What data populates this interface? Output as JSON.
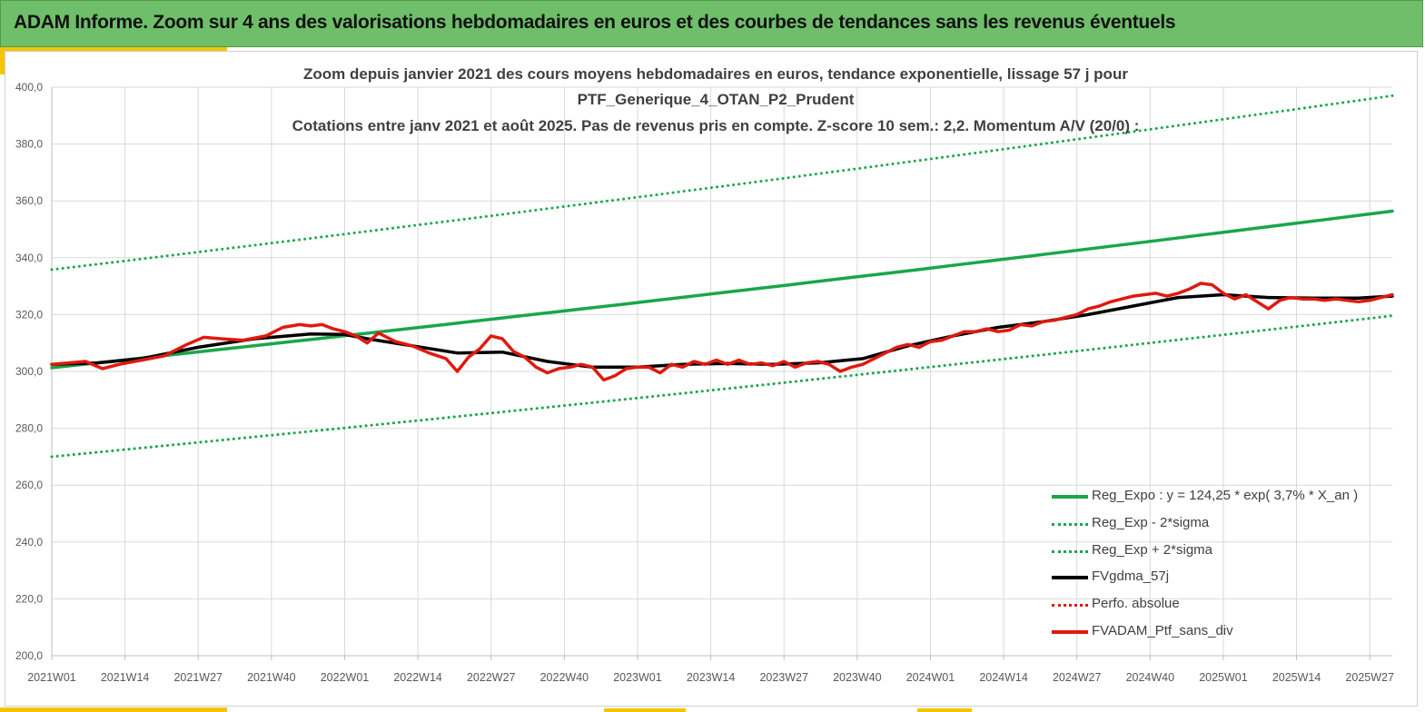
{
  "header": {
    "title": "ADAM Informe. Zoom sur 4 ans des valorisations hebdomadaires en euros et des courbes de tendances sans les revenus éventuels"
  },
  "chart_data": {
    "type": "line",
    "title": [
      "Zoom depuis janvier 2021 des cours moyens hebdomadaires  en euros, tendance exponentielle, lissage 57 j pour",
      "PTF_Generique_4_OTAN_P2_Prudent",
      "Cotations entre janv 2021 et août 2025. Pas de revenus pris en compte. Z-score 10 sem.: 2,2. Momentum A/V (20/0) :"
    ],
    "xlabel": "",
    "ylabel": "",
    "ylim": [
      200,
      400
    ],
    "yticks": [
      "400,0",
      "380,0",
      "360,0",
      "340,0",
      "320,0",
      "300,0",
      "280,0",
      "260,0",
      "240,0",
      "220,0",
      "200,0"
    ],
    "xticks": [
      "2021W01",
      "2021W14",
      "2021W27",
      "2021W40",
      "2022W01",
      "2022W14",
      "2022W27",
      "2022W40",
      "2023W01",
      "2023W14",
      "2023W27",
      "2023W40",
      "2024W01",
      "2024W14",
      "2024W27",
      "2024W40",
      "2025W01",
      "2025W14",
      "2025W27"
    ],
    "xrange_weeks": [
      0,
      238
    ],
    "grid": true,
    "legend_position": "bottom-right",
    "series": [
      {
        "name": "Reg_Expo : y = 124,25 * exp( 3,7% *  X_an )",
        "color": "#1aa64a",
        "style": "solid",
        "x": [
          0,
          238
        ],
        "y": [
          301.3,
          356.4
        ]
      },
      {
        "name": "Reg_Exp - 2*sigma",
        "color": "#1aa64a",
        "style": "dotted",
        "x": [
          0,
          238
        ],
        "y": [
          270.0,
          319.6
        ]
      },
      {
        "name": "Reg_Exp + 2*sigma",
        "color": "#1aa64a",
        "style": "dotted",
        "x": [
          0,
          238
        ],
        "y": [
          335.8,
          397.0
        ]
      },
      {
        "name": "FVgdma_57j",
        "color": "#000000",
        "style": "solid",
        "x": [
          0,
          8,
          16,
          26,
          36,
          46,
          52,
          56,
          64,
          72,
          80,
          88,
          96,
          104,
          112,
          120,
          128,
          136,
          144,
          152,
          160,
          168,
          176,
          184,
          192,
          200,
          208,
          216,
          224,
          232,
          238
        ],
        "y": [
          302.5,
          303.0,
          304.5,
          308.5,
          311.5,
          313.2,
          313.0,
          311.5,
          309.0,
          306.5,
          306.8,
          303.5,
          301.5,
          301.5,
          302.5,
          302.8,
          302.5,
          303.0,
          304.5,
          309.0,
          312.5,
          315.5,
          317.5,
          320.0,
          323.0,
          326.0,
          327.0,
          326.0,
          325.8,
          325.8,
          326.5
        ]
      },
      {
        "name": "Perfo. absolue",
        "color": "#e0190e",
        "style": "dotted",
        "x": [],
        "y": []
      },
      {
        "name": "FVADAM_Ptf_sans_div",
        "color": "#e0190e",
        "style": "solid",
        "x": [
          0,
          3,
          6,
          9,
          12,
          16,
          20,
          24,
          27,
          30,
          34,
          38,
          41,
          44,
          46,
          48,
          50,
          52,
          54,
          56,
          58,
          61,
          64,
          67,
          70,
          72,
          74,
          76,
          78,
          80,
          82,
          84,
          86,
          88,
          90,
          92,
          94,
          96,
          98,
          100,
          102,
          104,
          106,
          108,
          110,
          112,
          114,
          116,
          118,
          120,
          122,
          124,
          126,
          128,
          130,
          132,
          134,
          136,
          138,
          140,
          142,
          144,
          146,
          148,
          150,
          152,
          154,
          156,
          158,
          160,
          162,
          164,
          166,
          168,
          170,
          172,
          174,
          176,
          178,
          180,
          182,
          184,
          186,
          188,
          190,
          192,
          194,
          196,
          198,
          200,
          202,
          204,
          206,
          208,
          210,
          212,
          214,
          216,
          218,
          220,
          222,
          224,
          226,
          228,
          230,
          232,
          234,
          236,
          238
        ],
        "y": [
          302.5,
          303.0,
          303.5,
          301.0,
          302.5,
          304.0,
          305.5,
          309.5,
          312.0,
          311.5,
          311.0,
          312.5,
          315.5,
          316.5,
          316.0,
          316.5,
          315.0,
          314.0,
          312.5,
          310.0,
          313.5,
          310.5,
          309.0,
          306.5,
          304.5,
          300.0,
          305.0,
          308.0,
          312.5,
          311.5,
          307.0,
          305.0,
          301.5,
          299.5,
          301.0,
          301.5,
          302.5,
          301.5,
          297.0,
          298.5,
          301.0,
          301.5,
          301.5,
          299.5,
          302.5,
          301.5,
          303.5,
          302.5,
          304.0,
          302.5,
          304.0,
          302.5,
          303.0,
          302.0,
          303.5,
          301.5,
          303.0,
          303.5,
          302.5,
          300.0,
          301.5,
          302.5,
          304.5,
          306.5,
          308.5,
          309.5,
          308.5,
          310.5,
          311.0,
          312.5,
          314.0,
          314.0,
          315.0,
          314.0,
          314.5,
          316.5,
          316.0,
          317.5,
          318.0,
          319.0,
          320.0,
          322.0,
          323.0,
          324.5,
          325.5,
          326.5,
          327.0,
          327.5,
          326.5,
          327.5,
          329.0,
          331.0,
          330.5,
          327.5,
          325.5,
          327.0,
          324.5,
          322.0,
          325.0,
          326.0,
          325.5,
          325.5,
          325.0,
          325.5,
          325.0,
          324.5,
          325.0,
          326.0,
          327.0
        ]
      }
    ]
  }
}
